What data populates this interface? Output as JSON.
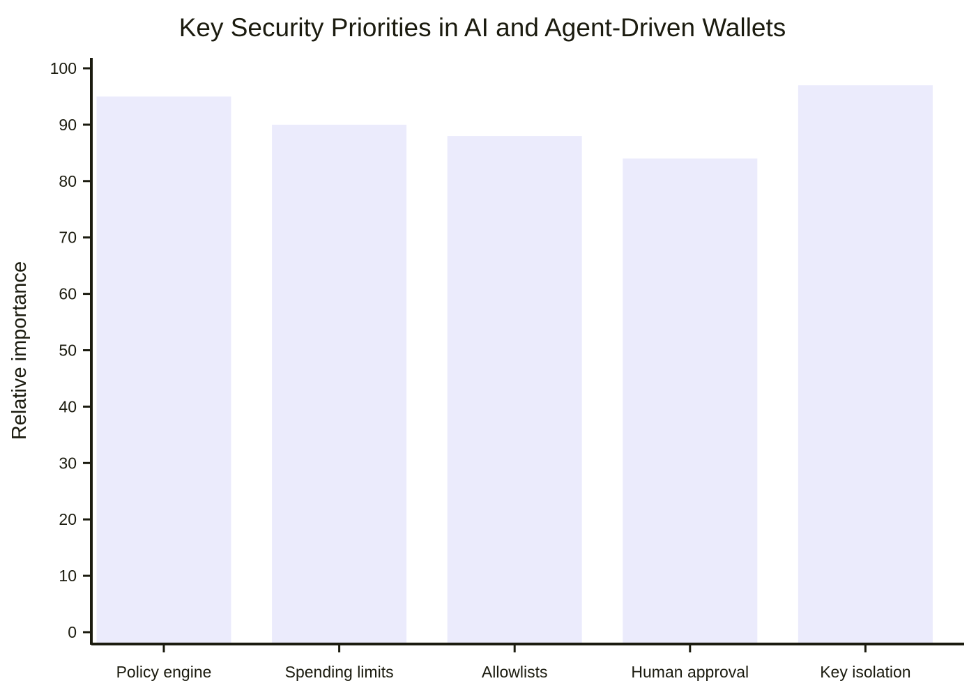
{
  "chart_data": {
    "type": "bar",
    "title": "Key Security Priorities in AI and Agent-Driven Wallets",
    "xlabel": "",
    "ylabel": "Relative importance",
    "categories": [
      "Policy engine",
      "Spending limits",
      "Allowlists",
      "Human approval",
      "Key isolation"
    ],
    "values": [
      95,
      90,
      88,
      84,
      97
    ],
    "ylim": [
      0,
      100
    ],
    "yticks": [
      0,
      10,
      20,
      30,
      40,
      50,
      60,
      70,
      80,
      90,
      100
    ],
    "grid": false,
    "bar_color": "#ebebfc",
    "axis_color": "#1b1b0f"
  }
}
